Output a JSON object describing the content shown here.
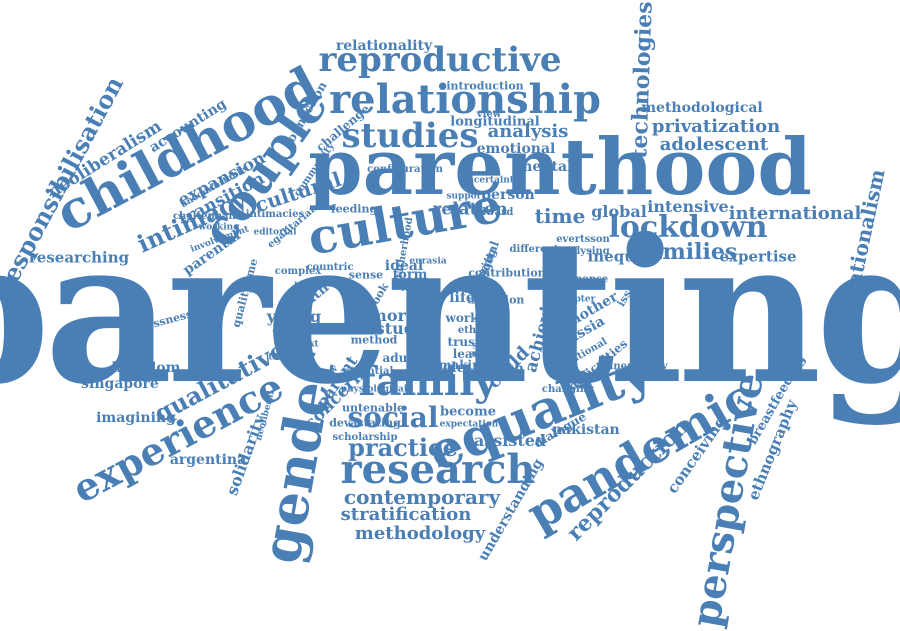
{
  "cloud": {
    "color": "#4a7fb5",
    "words": [
      "parenting",
      "parenthood",
      "childhood",
      "couple",
      "gender",
      "equality",
      "pandemic",
      "perspective",
      "culture",
      "family",
      "research",
      "relationship",
      "reproductive",
      "studies",
      "experience",
      "lockdown",
      "families",
      "social",
      "practice",
      "contemporary",
      "stratification",
      "methodology",
      "reproduction",
      "technologies",
      "transnationalism",
      "responsibilisation",
      "intimacy",
      "qualitative",
      "international",
      "privatization",
      "adolescent",
      "methodological",
      "relationality",
      "analysis",
      "relation",
      "time",
      "global",
      "intensive",
      "expertise",
      "inequity",
      "researching",
      "neoliberalism",
      "accounting",
      "expansion",
      "transition",
      "cultural",
      "kingdom",
      "singapore",
      "imagining",
      "argentina",
      "solidarity",
      "concern",
      "parent",
      "assisted",
      "pakistan",
      "understanding",
      "conceiving",
      "ethnography",
      "breastfeeding",
      "mother",
      "russia",
      "africa",
      "child",
      "achieving",
      "health",
      "article",
      "adult",
      "study",
      "more",
      "young",
      "youth",
      "life",
      "work",
      "ethic",
      "trust",
      "leave",
      "making",
      "form",
      "way",
      "ideal",
      "sense",
      "book",
      "person",
      "mental",
      "emotional",
      "longitudinal",
      "introduction",
      "connection",
      "challenge",
      "uncomfortable",
      "cheltenham",
      "parental",
      "egalitarian",
      "intimacies",
      "feeding",
      "community",
      "configuration",
      "uncertainty",
      "digital",
      "different",
      "evertsson",
      "analysing",
      "response",
      "chapter",
      "qualitytime",
      "selflessness",
      "countric",
      "scholarship",
      "become",
      "expectation",
      "untenable",
      "devastating",
      "dialogue",
      "changing",
      "vulnerability",
      "difficulties",
      "relational",
      "potential",
      "involvement",
      "complex",
      "context",
      "explore",
      "thinking",
      "method",
      "editorial",
      "care",
      "fatherhood",
      "eurasia",
      "view",
      "edward",
      "support",
      "working",
      "contribution",
      "caring",
      "account",
      "special",
      "issue",
      "neoliberal",
      "physiological",
      "border",
      "attention",
      "law",
      "breaking"
    ]
  }
}
